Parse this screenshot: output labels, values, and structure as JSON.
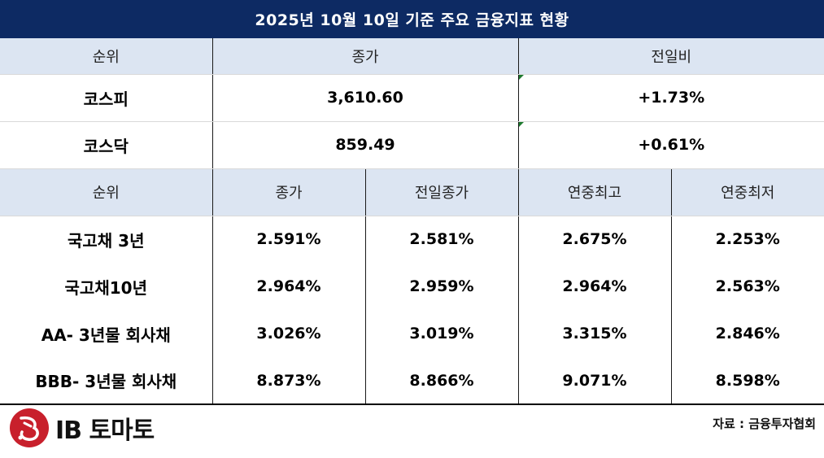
{
  "title": "2025년 10월 10일 기준 주요 금융지표 현황",
  "table1": {
    "headers": [
      "순위",
      "종가",
      "전일비"
    ],
    "rows": [
      {
        "name": "코스피",
        "close": "3,610.60",
        "change": "+1.73%"
      },
      {
        "name": "코스닥",
        "close": "859.49",
        "change": "+0.61%"
      }
    ]
  },
  "table2": {
    "headers": [
      "순위",
      "종가",
      "전일종가",
      "연중최고",
      "연중최저"
    ],
    "rows": [
      {
        "name": "국고채 3년",
        "close": "2.591%",
        "prev": "2.581%",
        "high": "2.675%",
        "low": "2.253%"
      },
      {
        "name": "국고채10년",
        "close": "2.964%",
        "prev": "2.959%",
        "high": "2.964%",
        "low": "2.563%"
      },
      {
        "name": "AA- 3년물 회사채",
        "close": "3.026%",
        "prev": "3.019%",
        "high": "3.315%",
        "low": "2.846%"
      },
      {
        "name": "BBB- 3년물 회사채",
        "close": "8.873%",
        "prev": "8.866%",
        "high": "9.071%",
        "low": "8.598%"
      }
    ]
  },
  "footer": {
    "logo_text": "IB 토마토",
    "source": "자료 : 금융투자협회"
  },
  "colors": {
    "title_bg": "#0d2a63",
    "header_bg": "#dce5f2",
    "logo_red": "#c8202c"
  }
}
